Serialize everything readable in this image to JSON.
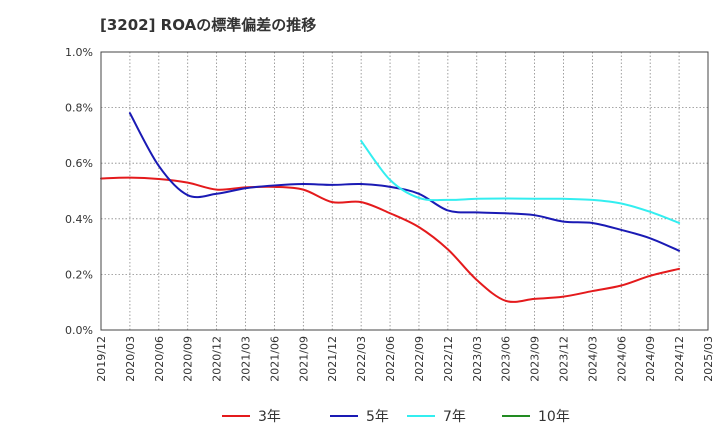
{
  "chart_data": {
    "type": "line",
    "title": "[3202]  ROAの標準偏差の推移",
    "xlabel": "",
    "ylabel": "",
    "ylim": [
      0.0,
      1.0
    ],
    "y_ticks": [
      "0.0%",
      "0.2%",
      "0.4%",
      "0.6%",
      "0.8%",
      "1.0%"
    ],
    "y_tick_values": [
      0.0,
      0.2,
      0.4,
      0.6,
      0.8,
      1.0
    ],
    "x_tick_labels": [
      "2019/12",
      "2020/03",
      "2020/06",
      "2020/09",
      "2020/12",
      "2021/03",
      "2021/06",
      "2021/09",
      "2021/12",
      "2022/03",
      "2022/06",
      "2022/09",
      "2022/12",
      "2023/03",
      "2023/06",
      "2023/09",
      "2023/12",
      "2024/03",
      "2024/06",
      "2024/09",
      "2024/12",
      "2025/03"
    ],
    "grid": true,
    "legend_position": "bottom",
    "series": [
      {
        "name": "3年",
        "color": "#e41a1c",
        "points": [
          [
            "2019/12",
            0.545
          ],
          [
            "2020/03",
            0.548
          ],
          [
            "2020/06",
            0.543
          ],
          [
            "2020/09",
            0.53
          ],
          [
            "2020/12",
            0.505
          ],
          [
            "2021/03",
            0.513
          ],
          [
            "2021/06",
            0.515
          ],
          [
            "2021/09",
            0.505
          ],
          [
            "2021/12",
            0.46
          ],
          [
            "2022/03",
            0.46
          ],
          [
            "2022/06",
            0.42
          ],
          [
            "2022/09",
            0.37
          ],
          [
            "2022/12",
            0.29
          ],
          [
            "2023/03",
            0.18
          ],
          [
            "2023/06",
            0.105
          ],
          [
            "2023/09",
            0.112
          ],
          [
            "2023/12",
            0.12
          ],
          [
            "2024/03",
            0.14
          ],
          [
            "2024/06",
            0.16
          ],
          [
            "2024/09",
            0.195
          ],
          [
            "2024/12",
            0.22
          ]
        ]
      },
      {
        "name": "5年",
        "color": "#1a1ab4",
        "points": [
          [
            "2020/03",
            0.78
          ],
          [
            "2020/06",
            0.59
          ],
          [
            "2020/09",
            0.485
          ],
          [
            "2020/12",
            0.49
          ],
          [
            "2021/03",
            0.51
          ],
          [
            "2021/06",
            0.52
          ],
          [
            "2021/09",
            0.525
          ],
          [
            "2021/12",
            0.522
          ],
          [
            "2022/03",
            0.525
          ],
          [
            "2022/06",
            0.515
          ],
          [
            "2022/09",
            0.49
          ],
          [
            "2022/12",
            0.43
          ],
          [
            "2023/03",
            0.423
          ],
          [
            "2023/06",
            0.42
          ],
          [
            "2023/09",
            0.413
          ],
          [
            "2023/12",
            0.39
          ],
          [
            "2024/03",
            0.385
          ],
          [
            "2024/06",
            0.36
          ],
          [
            "2024/09",
            0.33
          ],
          [
            "2024/12",
            0.285
          ]
        ]
      },
      {
        "name": "7年",
        "color": "#33eef0",
        "points": [
          [
            "2022/03",
            0.68
          ],
          [
            "2022/06",
            0.54
          ],
          [
            "2022/09",
            0.475
          ],
          [
            "2022/12",
            0.468
          ],
          [
            "2023/03",
            0.472
          ],
          [
            "2023/06",
            0.473
          ],
          [
            "2023/09",
            0.472
          ],
          [
            "2023/12",
            0.472
          ],
          [
            "2024/03",
            0.468
          ],
          [
            "2024/06",
            0.455
          ],
          [
            "2024/09",
            0.425
          ],
          [
            "2024/12",
            0.385
          ]
        ]
      },
      {
        "name": "10年",
        "color": "#228b22",
        "points": []
      }
    ]
  }
}
